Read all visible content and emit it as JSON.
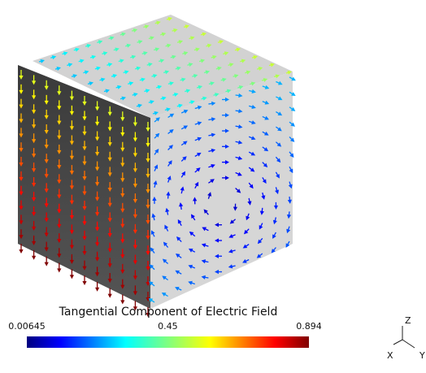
{
  "colorbar": {
    "title": "Tangential Component of Electric Field",
    "ticks": [
      0.00645,
      0.45,
      0.894
    ]
  },
  "axes_triad": {
    "z": "Z",
    "x": "X",
    "y": "Y"
  }
}
